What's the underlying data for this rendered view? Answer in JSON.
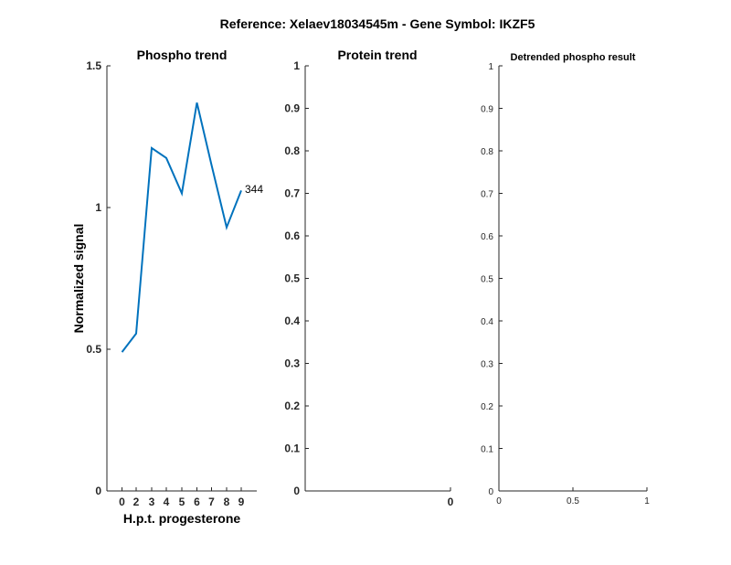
{
  "figure": {
    "suptitle": "Reference:  Xelaev18034545m - Gene Symbol:  IKZF5"
  },
  "chart_data": [
    {
      "type": "line",
      "title": "Phospho trend",
      "xlabel": "H.p.t. progesterone",
      "ylabel": "Normalized signal",
      "categories": [
        "0",
        "2",
        "3",
        "4",
        "5",
        "6",
        "7",
        "8",
        "9"
      ],
      "series": [
        {
          "values": [
            0.49,
            0.555,
            1.21,
            1.175,
            1.05,
            1.37,
            1.15,
            0.93,
            1.06
          ],
          "color": "#0072bd"
        }
      ],
      "yticks": [
        "0",
        "0.5",
        "1",
        "1.5"
      ],
      "ylim": [
        0,
        1.5
      ],
      "annotation": "344",
      "grid": false
    },
    {
      "type": "line",
      "title": "Protein trend",
      "xlabel": "",
      "ylabel": "",
      "series": [],
      "xticks": [
        "0"
      ],
      "yticks": [
        "0",
        "0.1",
        "0.2",
        "0.3",
        "0.4",
        "0.5",
        "0.6",
        "0.7",
        "0.8",
        "0.9",
        "1"
      ],
      "ylim": [
        0,
        1
      ],
      "grid": false
    },
    {
      "type": "line",
      "title": "Detrended phospho result",
      "xlabel": "",
      "ylabel": "",
      "series": [],
      "xticks": [
        "0",
        "0.5",
        "1"
      ],
      "xlim": [
        0,
        1
      ],
      "yticks": [
        "0",
        "0.1",
        "0.2",
        "0.3",
        "0.4",
        "0.5",
        "0.6",
        "0.7",
        "0.8",
        "0.9",
        "1"
      ],
      "ylim": [
        0,
        1
      ],
      "grid": false
    }
  ]
}
